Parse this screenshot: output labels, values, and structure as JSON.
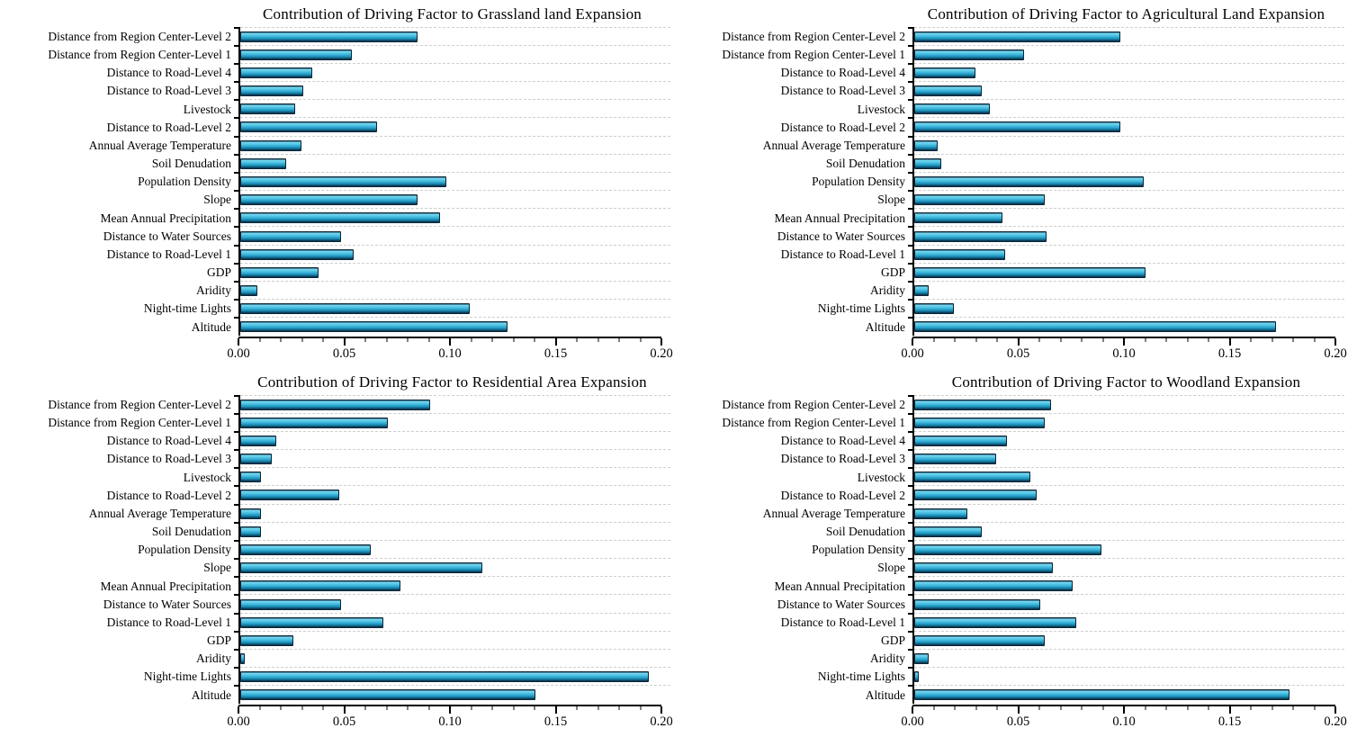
{
  "chart_data": {
    "type": "bar",
    "orientation": "horizontal",
    "grid": "dashed-horizontal",
    "legend": "none",
    "xlabel": "",
    "ylabel": "",
    "xlim": [
      0,
      0.2
    ],
    "x_ticks": [
      0,
      0.05,
      0.1,
      0.15,
      0.2
    ],
    "x_tick_labels": [
      "0.00",
      "0.05",
      "0.10",
      "0.15",
      "0.20"
    ],
    "minor_tick_step": 0.01,
    "bar_color": "#2fa9d2",
    "bar_border_color": "#0d2435",
    "categories_top_to_bottom": [
      "Distance from Region Center-Level 2",
      "Distance from Region Center-Level 1",
      "Distance to Road-Level 4",
      "Distance to Road-Level 3",
      "Livestock",
      "Distance to Road-Level 2",
      "Annual Average Temperature",
      "Soil Denudation",
      "Population Density",
      "Slope",
      "Mean Annual Precipitation",
      "Distance to Water Sources",
      "Distance to Road-Level 1",
      "GDP",
      "Aridity",
      "Night-time Lights",
      "Altitude"
    ],
    "charts": [
      {
        "title": "Contribution of Driving Factor to Grassland land Expansion",
        "values": [
          0.084,
          0.053,
          0.034,
          0.03,
          0.026,
          0.065,
          0.029,
          0.022,
          0.098,
          0.084,
          0.095,
          0.048,
          0.054,
          0.037,
          0.008,
          0.109,
          0.127
        ]
      },
      {
        "title": "Contribution of Driving Factor to Agricultural Land Expansion",
        "values": [
          0.098,
          0.052,
          0.029,
          0.032,
          0.036,
          0.098,
          0.011,
          0.013,
          0.109,
          0.062,
          0.042,
          0.063,
          0.043,
          0.11,
          0.007,
          0.019,
          0.172
        ]
      },
      {
        "title": "Contribution of Driving Factor to Residential Area Expansion",
        "values": [
          0.09,
          0.07,
          0.017,
          0.015,
          0.01,
          0.047,
          0.01,
          0.01,
          0.062,
          0.115,
          0.076,
          0.048,
          0.068,
          0.025,
          0.002,
          0.194,
          0.14
        ]
      },
      {
        "title": "Contribution of Driving Factor to Woodland Expansion",
        "values": [
          0.065,
          0.062,
          0.044,
          0.039,
          0.055,
          0.058,
          0.025,
          0.032,
          0.089,
          0.066,
          0.075,
          0.06,
          0.077,
          0.062,
          0.007,
          0.002,
          0.178
        ]
      }
    ]
  }
}
